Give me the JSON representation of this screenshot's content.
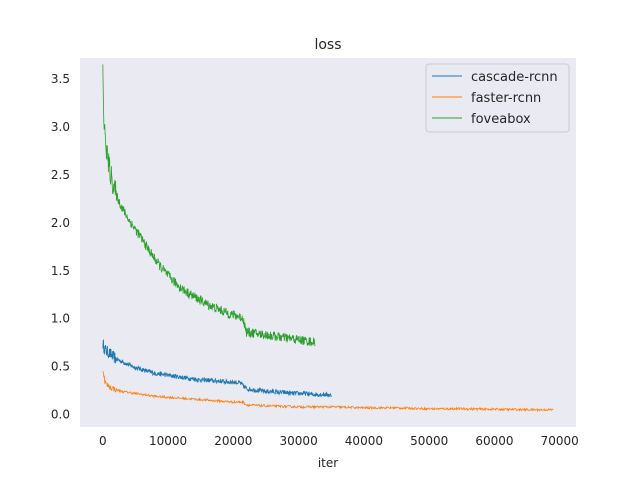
{
  "chart_data": {
    "type": "line",
    "title": "loss",
    "xlabel": "iter",
    "ylabel": "",
    "xlim": [
      -3500,
      72500
    ],
    "ylim": [
      -0.13,
      3.72
    ],
    "xticks": [
      0,
      10000,
      20000,
      30000,
      40000,
      50000,
      60000,
      70000
    ],
    "yticks": [
      0.0,
      0.5,
      1.0,
      1.5,
      2.0,
      2.5,
      3.0,
      3.5
    ],
    "xtick_labels": [
      "0",
      "10000",
      "20000",
      "30000",
      "40000",
      "50000",
      "60000",
      "70000"
    ],
    "ytick_labels": [
      "0.0",
      "0.5",
      "1.0",
      "1.5",
      "2.0",
      "2.5",
      "3.0",
      "3.5"
    ],
    "grid": false,
    "legend_position": "top-right",
    "series": [
      {
        "name": "cascade-rcnn",
        "color": "#1f77b4",
        "x": [
          0,
          300,
          600,
          1000,
          1500,
          2000,
          3000,
          4000,
          5000,
          6000,
          7000,
          8000,
          9000,
          10000,
          11000,
          12000,
          13000,
          14000,
          15000,
          16000,
          17000,
          18000,
          19000,
          20000,
          21000,
          21500,
          22000,
          23000,
          24000,
          25000,
          26000,
          27000,
          28000,
          29000,
          30000,
          31000,
          32000,
          33000,
          34000,
          35000
        ],
        "y": [
          0.74,
          0.68,
          0.66,
          0.64,
          0.61,
          0.58,
          0.55,
          0.52,
          0.49,
          0.47,
          0.45,
          0.43,
          0.42,
          0.41,
          0.4,
          0.39,
          0.38,
          0.37,
          0.36,
          0.36,
          0.35,
          0.35,
          0.34,
          0.34,
          0.33,
          0.3,
          0.27,
          0.26,
          0.25,
          0.24,
          0.24,
          0.23,
          0.23,
          0.22,
          0.22,
          0.22,
          0.21,
          0.21,
          0.21,
          0.2
        ],
        "noise": 0.025
      },
      {
        "name": "faster-rcnn",
        "color": "#ff7f0e",
        "x": [
          0,
          300,
          600,
          1000,
          2000,
          3000,
          4000,
          6000,
          8000,
          10000,
          12000,
          14000,
          16000,
          18000,
          20000,
          21500,
          22000,
          25000,
          30000,
          35000,
          40000,
          45000,
          50000,
          55000,
          60000,
          65000,
          69000
        ],
        "y": [
          0.48,
          0.35,
          0.31,
          0.29,
          0.26,
          0.24,
          0.23,
          0.21,
          0.19,
          0.18,
          0.17,
          0.16,
          0.15,
          0.14,
          0.13,
          0.13,
          0.1,
          0.09,
          0.08,
          0.08,
          0.07,
          0.07,
          0.06,
          0.06,
          0.055,
          0.05,
          0.05
        ],
        "noise": 0.012
      },
      {
        "name": "foveabox",
        "color": "#2ca02c",
        "x": [
          0,
          150,
          300,
          500,
          800,
          1200,
          1600,
          2000,
          2500,
          3000,
          4000,
          5000,
          6000,
          7000,
          8000,
          9000,
          10000,
          11000,
          12000,
          13000,
          14000,
          15000,
          16000,
          17000,
          18000,
          19000,
          20000,
          21000,
          21500,
          22000,
          23000,
          24000,
          25000,
          26000,
          27000,
          28000,
          29000,
          30000,
          31000,
          32000,
          32500
        ],
        "y": [
          3.58,
          3.1,
          2.92,
          2.8,
          2.65,
          2.5,
          2.4,
          2.3,
          2.22,
          2.15,
          2.03,
          1.93,
          1.83,
          1.72,
          1.62,
          1.53,
          1.45,
          1.38,
          1.32,
          1.27,
          1.23,
          1.19,
          1.15,
          1.12,
          1.09,
          1.06,
          1.04,
          1.02,
          1.0,
          0.86,
          0.85,
          0.84,
          0.83,
          0.82,
          0.81,
          0.8,
          0.79,
          0.78,
          0.77,
          0.76,
          0.75
        ],
        "noise": 0.05
      }
    ]
  }
}
